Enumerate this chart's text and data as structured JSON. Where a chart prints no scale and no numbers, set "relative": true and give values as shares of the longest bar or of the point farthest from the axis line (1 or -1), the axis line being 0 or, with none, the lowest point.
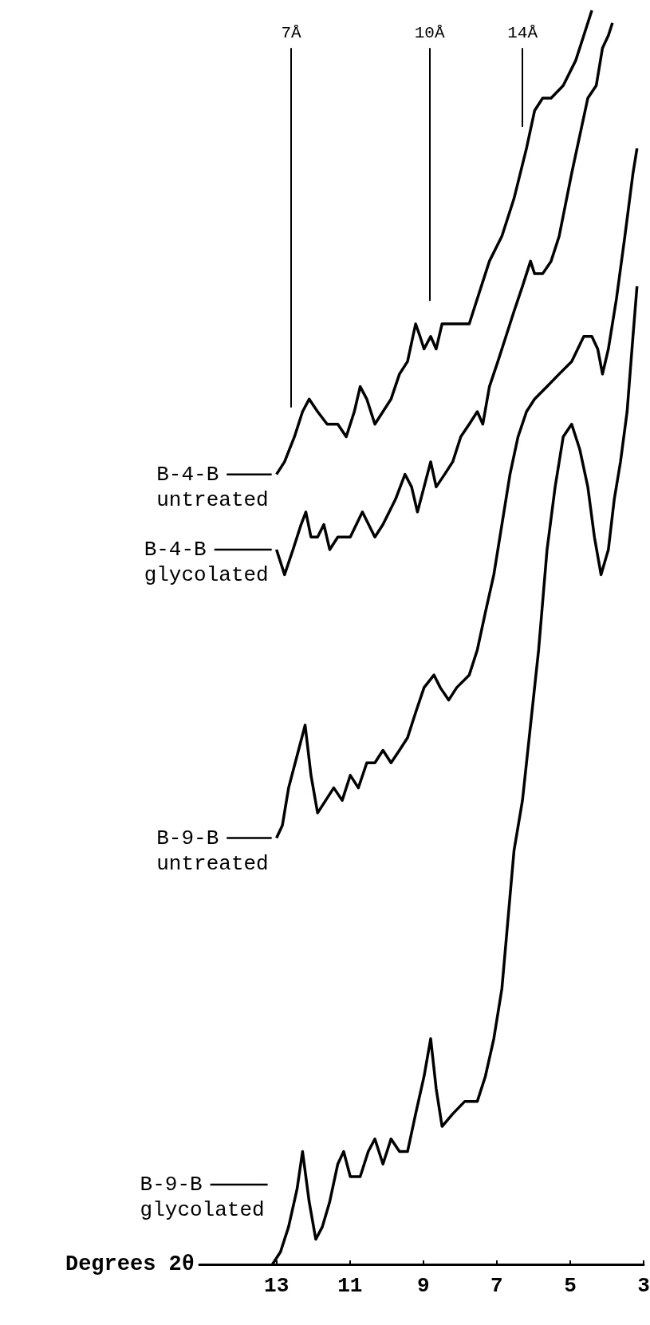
{
  "chart_data": {
    "type": "line",
    "xlabel": "Degrees 2θ",
    "relative": true,
    "xlim": [
      15.1,
      3
    ],
    "xticks": [
      13,
      11,
      9,
      7,
      5,
      3
    ],
    "legend": false,
    "marker": "none",
    "ref_lines": [
      {
        "axis": "x",
        "value": 12.6,
        "label": "7Å"
      },
      {
        "axis": "x",
        "value": 8.83,
        "label": "10Å"
      },
      {
        "axis": "x",
        "value": 6.3,
        "label": "14Å"
      }
    ],
    "series": [
      {
        "name": "B-4-B untreated",
        "color": "#000000",
        "x": [
          13,
          12.78,
          12.51,
          12.29,
          12.11,
          11.88,
          11.62,
          11.33,
          11.1,
          10.88,
          10.72,
          10.54,
          10.32,
          10.1,
          9.88,
          9.65,
          9.43,
          9.21,
          9.09,
          8.98,
          8.8,
          8.65,
          8.49,
          8.31,
          7.98,
          7.75,
          7.53,
          7.2,
          6.86,
          6.53,
          6.19,
          5.97,
          5.75,
          5.52,
          5.19,
          4.85,
          4.63,
          4.41
        ],
        "values": [
          0.63,
          0.64,
          0.66,
          0.68,
          0.69,
          0.68,
          0.67,
          0.67,
          0.66,
          0.68,
          0.7,
          0.69,
          0.67,
          0.68,
          0.69,
          0.71,
          0.72,
          0.75,
          0.74,
          0.73,
          0.74,
          0.73,
          0.75,
          0.75,
          0.75,
          0.75,
          0.77,
          0.8,
          0.82,
          0.85,
          0.89,
          0.92,
          0.93,
          0.93,
          0.94,
          0.96,
          0.98,
          1.0
        ]
      },
      {
        "name": "B-4-B glycolated",
        "color": "#000000",
        "x": [
          13,
          12.78,
          12.55,
          12.33,
          12.2,
          12.06,
          11.88,
          11.71,
          11.55,
          11.33,
          10.99,
          10.66,
          10.32,
          10.1,
          9.76,
          9.5,
          9.32,
          9.16,
          8.98,
          8.8,
          8.65,
          8.42,
          8.2,
          7.98,
          7.75,
          7.53,
          7.38,
          7.2,
          6.97,
          6.75,
          6.53,
          6.3,
          6.08,
          5.97,
          5.75,
          5.52,
          5.3,
          4.96,
          4.74,
          4.52,
          4.29,
          4.12,
          3.96,
          3.85
        ],
        "values": [
          0.57,
          0.55,
          0.57,
          0.59,
          0.6,
          0.58,
          0.58,
          0.59,
          0.57,
          0.58,
          0.58,
          0.6,
          0.58,
          0.59,
          0.61,
          0.63,
          0.62,
          0.6,
          0.62,
          0.64,
          0.62,
          0.63,
          0.64,
          0.66,
          0.67,
          0.68,
          0.67,
          0.7,
          0.72,
          0.74,
          0.76,
          0.78,
          0.8,
          0.79,
          0.79,
          0.8,
          0.82,
          0.87,
          0.9,
          0.93,
          0.94,
          0.97,
          0.98,
          0.99
        ]
      },
      {
        "name": "B-9-B untreated",
        "color": "#000000",
        "x": [
          13,
          12.84,
          12.67,
          12.4,
          12.22,
          12.06,
          11.88,
          11.66,
          11.44,
          11.21,
          10.99,
          10.77,
          10.54,
          10.32,
          10.1,
          9.88,
          9.65,
          9.43,
          9.21,
          8.98,
          8.71,
          8.54,
          8.31,
          8.09,
          7.75,
          7.53,
          7.31,
          7.08,
          6.86,
          6.64,
          6.42,
          6.19,
          5.97,
          5.63,
          5.3,
          4.96,
          4.63,
          4.41,
          4.25,
          4.12,
          3.96,
          3.74,
          3.51,
          3.29,
          3.18
        ],
        "values": [
          0.34,
          0.35,
          0.38,
          0.41,
          0.43,
          0.39,
          0.36,
          0.37,
          0.38,
          0.37,
          0.39,
          0.38,
          0.4,
          0.4,
          0.41,
          0.4,
          0.41,
          0.42,
          0.44,
          0.46,
          0.47,
          0.46,
          0.45,
          0.46,
          0.47,
          0.49,
          0.52,
          0.55,
          0.59,
          0.63,
          0.66,
          0.68,
          0.69,
          0.7,
          0.71,
          0.72,
          0.74,
          0.74,
          0.73,
          0.71,
          0.73,
          0.77,
          0.82,
          0.87,
          0.89
        ]
      },
      {
        "name": "B-9-B glycolated",
        "color": "#000000",
        "x": [
          13.11,
          12.89,
          12.67,
          12.44,
          12.29,
          12.11,
          11.93,
          11.75,
          11.55,
          11.33,
          11.17,
          10.99,
          10.72,
          10.5,
          10.32,
          10.1,
          9.88,
          9.65,
          9.43,
          9.21,
          8.98,
          8.8,
          8.65,
          8.49,
          8.2,
          7.87,
          7.53,
          7.31,
          7.08,
          6.86,
          6.71,
          6.53,
          6.3,
          6.08,
          5.86,
          5.63,
          5.41,
          5.19,
          4.96,
          4.74,
          4.52,
          4.34,
          4.16,
          3.96,
          3.8,
          3.63,
          3.45,
          3.29,
          3.18
        ],
        "values": [
          0,
          0.01,
          0.03,
          0.06,
          0.09,
          0.05,
          0.02,
          0.03,
          0.05,
          0.08,
          0.09,
          0.07,
          0.07,
          0.09,
          0.1,
          0.08,
          0.1,
          0.09,
          0.09,
          0.12,
          0.15,
          0.18,
          0.14,
          0.11,
          0.12,
          0.13,
          0.13,
          0.15,
          0.18,
          0.22,
          0.27,
          0.33,
          0.37,
          0.43,
          0.49,
          0.57,
          0.62,
          0.66,
          0.67,
          0.65,
          0.62,
          0.58,
          0.55,
          0.57,
          0.61,
          0.64,
          0.68,
          0.74,
          0.78
        ]
      }
    ]
  }
}
